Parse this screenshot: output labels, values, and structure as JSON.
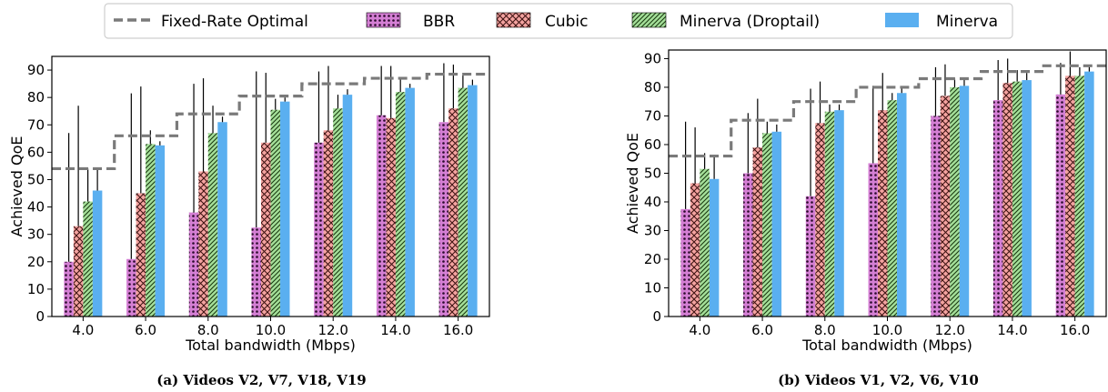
{
  "legend": {
    "items": [
      {
        "key": "optimal",
        "label": "Fixed-Rate Optimal",
        "style": "dashed-line",
        "color": "#7a7a7a"
      },
      {
        "key": "bbr",
        "label": "BBR",
        "style": "dotted-fill",
        "color": "#d47fd4"
      },
      {
        "key": "cubic",
        "label": "Cubic",
        "style": "crosshatch-fill",
        "color": "#f4a3a0"
      },
      {
        "key": "droptail",
        "label": "Minerva (Droptail)",
        "style": "diagonal-hatch-fill",
        "color": "#a5e09a"
      },
      {
        "key": "minerva",
        "label": "Minerva",
        "style": "solid-fill",
        "color": "#5aaff0"
      }
    ]
  },
  "chart_data": [
    {
      "type": "bar",
      "caption": "(a) Videos V2, V7, V18, V19",
      "xlabel": "Total bandwidth (Mbps)",
      "ylabel": "Achieved QoE",
      "ylim": [
        0,
        95
      ],
      "yticks": [
        0,
        10,
        20,
        30,
        40,
        50,
        60,
        70,
        80,
        90
      ],
      "categories": [
        "4.0",
        "6.0",
        "8.0",
        "10.0",
        "12.0",
        "14.0",
        "16.0"
      ],
      "series": [
        {
          "name": "BBR",
          "values": [
            20,
            21,
            38,
            32.5,
            63.5,
            73.5,
            71
          ],
          "err_high": [
            67,
            81.5,
            85,
            89.5,
            89.5,
            91.5,
            92.5
          ]
        },
        {
          "name": "Cubic",
          "values": [
            33,
            45,
            53,
            63.5,
            68,
            72.5,
            76
          ],
          "err_high": [
            77,
            84,
            87,
            89,
            91.5,
            91.5,
            92
          ]
        },
        {
          "name": "Minerva (Droptail)",
          "values": [
            42,
            63,
            67,
            75.5,
            76,
            82,
            83.5
          ],
          "err_high": [
            54,
            68,
            77,
            79.5,
            81,
            87,
            88
          ]
        },
        {
          "name": "Minerva",
          "values": [
            46,
            62.5,
            71,
            78.5,
            81,
            83.5,
            84.5
          ],
          "err_high": [
            54,
            64,
            73,
            80,
            83,
            85,
            86.5
          ]
        },
        {
          "name": "Fixed-Rate Optimal",
          "values": [
            54,
            66,
            74,
            80.5,
            85,
            87,
            88.5
          ]
        }
      ]
    },
    {
      "type": "bar",
      "caption": "(b) Videos V1, V2, V6, V10",
      "xlabel": "Total bandwidth (Mbps)",
      "ylabel": "Achieved QoE",
      "ylim": [
        0,
        93
      ],
      "yticks": [
        0,
        10,
        20,
        30,
        40,
        50,
        60,
        70,
        80,
        90
      ],
      "categories": [
        "4.0",
        "6.0",
        "8.0",
        "10.0",
        "12.0",
        "14.0",
        "16.0"
      ],
      "series": [
        {
          "name": "BBR",
          "values": [
            37.5,
            50,
            42,
            53.5,
            70,
            75.5,
            77.5
          ],
          "err_high": [
            68,
            71,
            79.5,
            80.5,
            87,
            89.5,
            88.5
          ]
        },
        {
          "name": "Cubic",
          "values": [
            46.5,
            59,
            67.5,
            72,
            77,
            81.5,
            84
          ],
          "err_high": [
            66,
            76,
            82,
            85,
            88,
            90,
            92.5
          ]
        },
        {
          "name": "Minerva (Droptail)",
          "values": [
            51.5,
            64,
            71.5,
            75.5,
            80,
            82,
            84
          ],
          "err_high": [
            57,
            68,
            74,
            78,
            83,
            86,
            87
          ]
        },
        {
          "name": "Minerva",
          "values": [
            48,
            64.5,
            72,
            78,
            80.5,
            82.5,
            85.5
          ],
          "err_high": [
            56,
            67,
            74,
            80,
            83,
            85,
            87
          ]
        },
        {
          "name": "Fixed-Rate Optimal",
          "values": [
            56,
            68.5,
            75,
            80,
            83,
            85.5,
            87.5
          ]
        }
      ]
    }
  ]
}
